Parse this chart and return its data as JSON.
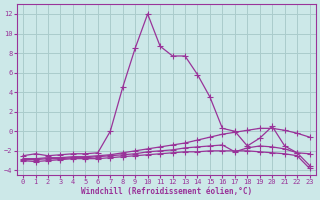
{
  "bg_color": "#cce8e8",
  "grid_color": "#aacccc",
  "line_color": "#993399",
  "xlabel": "Windchill (Refroidissement éolien,°C)",
  "xlim": [
    -0.5,
    23.5
  ],
  "ylim": [
    -4.5,
    13.0
  ],
  "yticks": [
    -4,
    -2,
    0,
    2,
    4,
    6,
    8,
    10,
    12
  ],
  "xticks": [
    0,
    1,
    2,
    3,
    4,
    5,
    6,
    7,
    8,
    9,
    10,
    11,
    12,
    13,
    14,
    15,
    16,
    17,
    18,
    19,
    20,
    21,
    22,
    23
  ],
  "line1_x": [
    0,
    1,
    2,
    3,
    4,
    5,
    6,
    7,
    8,
    9,
    10,
    11,
    12,
    13,
    14,
    15,
    16,
    17,
    18,
    19,
    20,
    21,
    22,
    23
  ],
  "line1_y": [
    -2.5,
    -2.3,
    -2.5,
    -2.4,
    -2.3,
    -2.3,
    -2.2,
    0.0,
    4.5,
    8.5,
    12.0,
    8.7,
    7.7,
    7.7,
    5.8,
    3.5,
    0.3,
    0.0,
    -1.5,
    -0.7,
    0.5,
    -1.5,
    -2.2,
    -3.5
  ],
  "line2_x": [
    0,
    1,
    2,
    3,
    4,
    5,
    6,
    7,
    8,
    9,
    10,
    11,
    12,
    13,
    14,
    15,
    16,
    17,
    18,
    19,
    20,
    21,
    22,
    23
  ],
  "line2_y": [
    -2.8,
    -2.8,
    -2.7,
    -2.7,
    -2.6,
    -2.6,
    -2.5,
    -2.4,
    -2.2,
    -2.0,
    -1.8,
    -1.6,
    -1.4,
    -1.2,
    -0.9,
    -0.6,
    -0.3,
    -0.1,
    0.1,
    0.3,
    0.3,
    0.1,
    -0.2,
    -0.6
  ],
  "line3_x": [
    0,
    1,
    2,
    3,
    4,
    5,
    6,
    7,
    8,
    9,
    10,
    11,
    12,
    13,
    14,
    15,
    16,
    17,
    18,
    19,
    20,
    21,
    22,
    23
  ],
  "line3_y": [
    -2.9,
    -2.9,
    -2.8,
    -2.8,
    -2.7,
    -2.7,
    -2.6,
    -2.5,
    -2.4,
    -2.3,
    -2.1,
    -2.0,
    -1.9,
    -1.7,
    -1.6,
    -1.5,
    -1.4,
    -2.1,
    -1.7,
    -1.5,
    -1.6,
    -1.8,
    -2.2,
    -2.3
  ],
  "line4_x": [
    0,
    1,
    2,
    3,
    4,
    5,
    6,
    7,
    8,
    9,
    10,
    11,
    12,
    13,
    14,
    15,
    16,
    17,
    18,
    19,
    20,
    21,
    22,
    23
  ],
  "line4_y": [
    -3.0,
    -3.1,
    -3.0,
    -2.9,
    -2.8,
    -2.8,
    -2.8,
    -2.7,
    -2.6,
    -2.5,
    -2.4,
    -2.3,
    -2.2,
    -2.1,
    -2.1,
    -2.0,
    -2.0,
    -2.0,
    -2.0,
    -2.1,
    -2.2,
    -2.3,
    -2.5,
    -3.8
  ]
}
